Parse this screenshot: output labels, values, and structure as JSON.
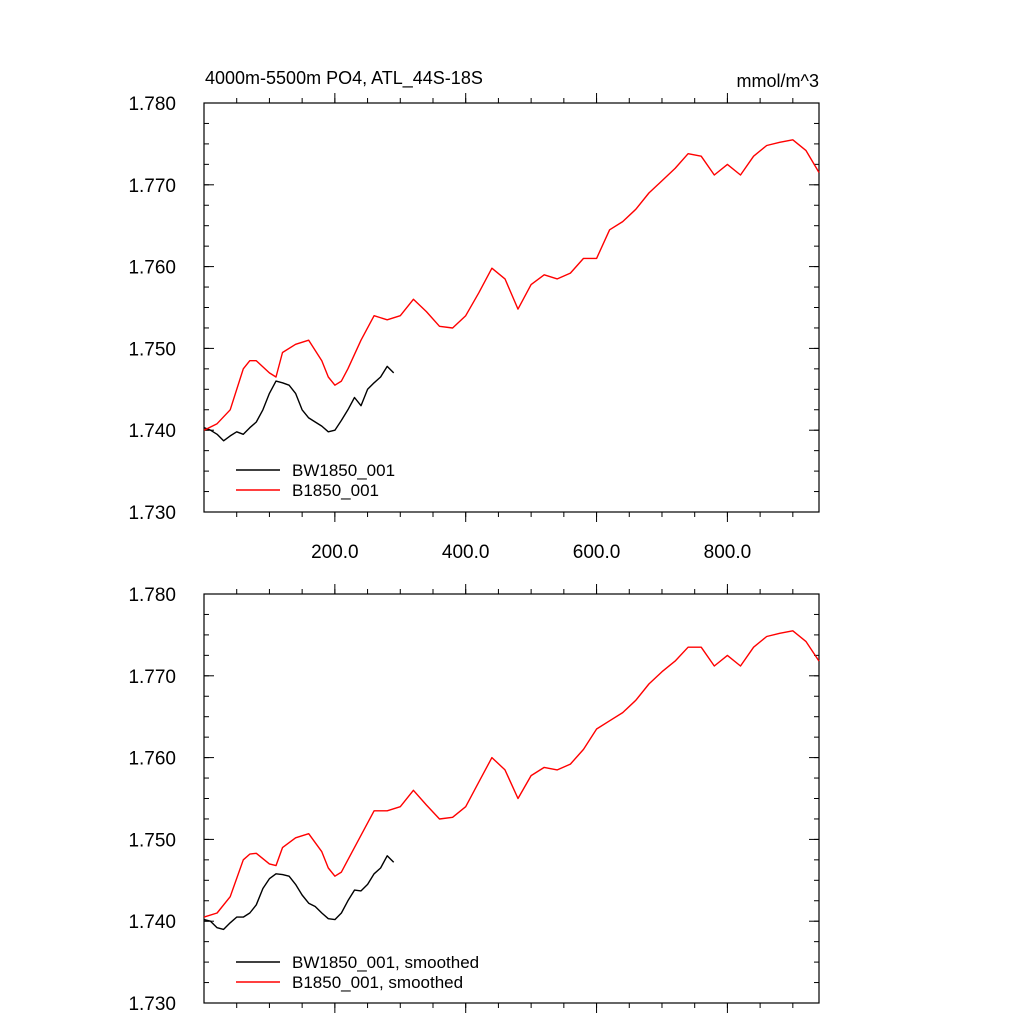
{
  "chart_data": [
    {
      "type": "line",
      "title": "4000m-5500m PO4, ATL_44S-18S",
      "units": "mmol/m^3",
      "xlim": [
        0,
        940
      ],
      "ylim": [
        1.73,
        1.78
      ],
      "xticks": [
        200,
        400,
        600,
        800
      ],
      "xtick_labels": [
        "200.0",
        "400.0",
        "600.0",
        "800.0"
      ],
      "yticks": [
        1.73,
        1.74,
        1.75,
        1.76,
        1.77,
        1.78
      ],
      "ytick_labels": [
        "1.730",
        "1.740",
        "1.750",
        "1.760",
        "1.770",
        "1.780"
      ],
      "grid": false,
      "legend_position": "bottom-left",
      "series": [
        {
          "name": "BW1850_001",
          "color": "#000000",
          "x": [
            0,
            10,
            20,
            30,
            40,
            50,
            60,
            70,
            80,
            90,
            100,
            110,
            120,
            130,
            140,
            150,
            160,
            170,
            180,
            190,
            200,
            210,
            220,
            230,
            240,
            250,
            260,
            270,
            280,
            290
          ],
          "y": [
            1.7403,
            1.74,
            1.7395,
            1.7387,
            1.7393,
            1.7398,
            1.7395,
            1.7403,
            1.741,
            1.7425,
            1.7445,
            1.746,
            1.7458,
            1.7455,
            1.7445,
            1.7425,
            1.7415,
            1.741,
            1.7405,
            1.7398,
            1.74,
            1.7412,
            1.7425,
            1.744,
            1.743,
            1.745,
            1.7458,
            1.7465,
            1.7478,
            1.747
          ]
        },
        {
          "name": "B1850_001",
          "color": "#ff0000",
          "x": [
            0,
            20,
            40,
            60,
            70,
            80,
            100,
            110,
            120,
            140,
            160,
            180,
            190,
            200,
            210,
            220,
            240,
            260,
            280,
            300,
            320,
            340,
            360,
            380,
            400,
            420,
            440,
            460,
            480,
            500,
            520,
            540,
            560,
            580,
            600,
            620,
            640,
            660,
            680,
            700,
            720,
            740,
            760,
            780,
            800,
            820,
            840,
            860,
            880,
            900,
            920,
            940
          ],
          "y": [
            1.74,
            1.7408,
            1.7425,
            1.7475,
            1.7485,
            1.7485,
            1.747,
            1.7465,
            1.7495,
            1.7505,
            1.751,
            1.7485,
            1.7465,
            1.7455,
            1.746,
            1.7475,
            1.751,
            1.754,
            1.7535,
            1.754,
            1.756,
            1.7545,
            1.7527,
            1.7525,
            1.754,
            1.7568,
            1.7598,
            1.7585,
            1.7548,
            1.7578,
            1.759,
            1.7585,
            1.7592,
            1.761,
            1.761,
            1.7645,
            1.7655,
            1.767,
            1.769,
            1.7705,
            1.772,
            1.7738,
            1.7735,
            1.7712,
            1.7725,
            1.7712,
            1.7735,
            1.7748,
            1.7752,
            1.7755,
            1.7742,
            1.7715
          ]
        }
      ]
    },
    {
      "type": "line",
      "xlim": [
        0,
        940
      ],
      "ylim": [
        1.73,
        1.78
      ],
      "xticks": [
        200,
        400,
        600,
        800
      ],
      "yticks": [
        1.73,
        1.74,
        1.75,
        1.76,
        1.77,
        1.78
      ],
      "ytick_labels": [
        "1.730",
        "1.740",
        "1.750",
        "1.760",
        "1.770",
        "1.780"
      ],
      "grid": false,
      "legend_position": "bottom-left",
      "series": [
        {
          "name": "BW1850_001, smoothed",
          "color": "#000000",
          "x": [
            0,
            10,
            20,
            30,
            40,
            50,
            60,
            70,
            80,
            90,
            100,
            110,
            120,
            130,
            140,
            150,
            160,
            170,
            180,
            190,
            200,
            210,
            220,
            230,
            240,
            250,
            260,
            270,
            280,
            290
          ],
          "y": [
            1.7402,
            1.74,
            1.7392,
            1.739,
            1.7398,
            1.7405,
            1.7405,
            1.741,
            1.742,
            1.744,
            1.7452,
            1.7458,
            1.7457,
            1.7455,
            1.7445,
            1.7432,
            1.7422,
            1.7418,
            1.741,
            1.7403,
            1.7402,
            1.741,
            1.7425,
            1.7438,
            1.7437,
            1.7445,
            1.7458,
            1.7465,
            1.748,
            1.7472
          ]
        },
        {
          "name": "B1850_001, smoothed",
          "color": "#ff0000",
          "x": [
            0,
            20,
            40,
            60,
            70,
            80,
            100,
            110,
            120,
            140,
            160,
            180,
            190,
            200,
            210,
            220,
            240,
            260,
            280,
            300,
            320,
            340,
            360,
            380,
            400,
            420,
            440,
            460,
            480,
            500,
            520,
            540,
            560,
            580,
            600,
            620,
            640,
            660,
            680,
            700,
            720,
            740,
            760,
            780,
            800,
            820,
            840,
            860,
            880,
            900,
            920,
            940
          ],
          "y": [
            1.7405,
            1.741,
            1.743,
            1.7475,
            1.7482,
            1.7483,
            1.747,
            1.7468,
            1.749,
            1.7502,
            1.7507,
            1.7485,
            1.7465,
            1.7455,
            1.746,
            1.7475,
            1.7505,
            1.7535,
            1.7535,
            1.754,
            1.756,
            1.7542,
            1.7525,
            1.7527,
            1.754,
            1.757,
            1.76,
            1.7585,
            1.755,
            1.7578,
            1.7588,
            1.7585,
            1.7592,
            1.761,
            1.7635,
            1.7645,
            1.7655,
            1.767,
            1.769,
            1.7705,
            1.7718,
            1.7735,
            1.7735,
            1.7712,
            1.7725,
            1.7712,
            1.7735,
            1.7748,
            1.7752,
            1.7755,
            1.7742,
            1.7718
          ]
        }
      ]
    }
  ]
}
